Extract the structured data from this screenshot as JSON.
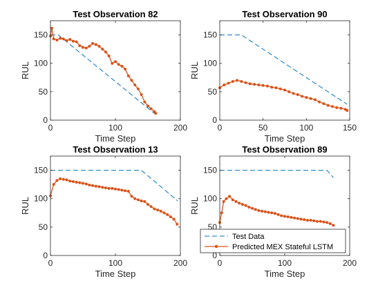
{
  "chart_data": [
    {
      "type": "line",
      "title": "Test Observation 82",
      "xlabel": "Time Step",
      "ylabel": "RUL",
      "xlim": [
        0,
        200
      ],
      "ylim": [
        0,
        175
      ],
      "xticks": [
        0,
        100,
        200
      ],
      "yticks": [
        0,
        50,
        100,
        150
      ],
      "series": [
        {
          "name": "Test Data",
          "style": "dashed",
          "color": "#0072BD",
          "x": [
            0,
            12,
            162
          ],
          "y": [
            150,
            150,
            10
          ]
        },
        {
          "name": "Predicted MEX Stateful LSTM",
          "style": "line-marker",
          "color": "#D95319",
          "x": [
            0,
            2,
            5,
            10,
            15,
            20,
            25,
            30,
            35,
            40,
            45,
            50,
            55,
            60,
            65,
            70,
            75,
            80,
            85,
            90,
            95,
            100,
            105,
            110,
            115,
            120,
            125,
            130,
            135,
            140,
            145,
            150,
            155,
            160,
            162
          ],
          "y": [
            148,
            162,
            143,
            141,
            144,
            143,
            140,
            142,
            139,
            138,
            131,
            128,
            127,
            130,
            135,
            133,
            130,
            125,
            120,
            113,
            100,
            103,
            98,
            95,
            90,
            78,
            70,
            62,
            55,
            45,
            32,
            25,
            20,
            15,
            12
          ]
        }
      ]
    },
    {
      "type": "line",
      "title": "Test Observation 90",
      "xlabel": "Time Step",
      "ylabel": "RUL",
      "xlim": [
        0,
        150
      ],
      "ylim": [
        0,
        175
      ],
      "xticks": [
        0,
        50,
        100,
        150
      ],
      "yticks": [
        0,
        50,
        100,
        150
      ],
      "series": [
        {
          "name": "Test Data",
          "style": "dashed",
          "color": "#0072BD",
          "x": [
            0,
            25,
            147
          ],
          "y": [
            150,
            150,
            28
          ]
        },
        {
          "name": "Predicted MEX Stateful LSTM",
          "style": "line-marker",
          "color": "#D95319",
          "x": [
            0,
            5,
            10,
            15,
            20,
            25,
            30,
            35,
            40,
            45,
            50,
            55,
            60,
            65,
            70,
            75,
            80,
            85,
            90,
            95,
            100,
            105,
            110,
            115,
            120,
            125,
            130,
            135,
            140,
            145,
            147
          ],
          "y": [
            57,
            62,
            65,
            68,
            70,
            68,
            66,
            64,
            63,
            62,
            61,
            60,
            58,
            57,
            55,
            53,
            50,
            47,
            45,
            42,
            40,
            38,
            36,
            32,
            29,
            26,
            24,
            22,
            21,
            19,
            17
          ]
        }
      ]
    },
    {
      "type": "line",
      "title": "Test Observation 13",
      "xlabel": "Time Step",
      "ylabel": "RUL",
      "xlim": [
        0,
        200
      ],
      "ylim": [
        0,
        175
      ],
      "xticks": [
        0,
        100,
        200
      ],
      "yticks": [
        0,
        50,
        100,
        150
      ],
      "series": [
        {
          "name": "Test Data",
          "style": "dashed",
          "color": "#0072BD",
          "x": [
            0,
            140,
            196
          ],
          "y": [
            150,
            150,
            96
          ]
        },
        {
          "name": "Predicted MEX Stateful LSTM",
          "style": "line-marker",
          "color": "#D95319",
          "x": [
            0,
            5,
            10,
            15,
            20,
            25,
            30,
            35,
            40,
            45,
            50,
            55,
            60,
            65,
            70,
            75,
            80,
            85,
            90,
            95,
            100,
            105,
            110,
            115,
            120,
            125,
            130,
            135,
            140,
            145,
            150,
            155,
            160,
            165,
            170,
            175,
            180,
            185,
            190,
            195
          ],
          "y": [
            105,
            125,
            132,
            135,
            134,
            133,
            131,
            130,
            129,
            128,
            127,
            126,
            124,
            123,
            122,
            121,
            120,
            119,
            118,
            118,
            117,
            116,
            115,
            114,
            113,
            104,
            100,
            98,
            96,
            95,
            90,
            86,
            82,
            80,
            78,
            75,
            72,
            68,
            64,
            55
          ]
        }
      ]
    },
    {
      "type": "line",
      "title": "Test Observation 89",
      "xlabel": "Time Step",
      "ylabel": "RUL",
      "xlim": [
        0,
        200
      ],
      "ylim": [
        0,
        175
      ],
      "xticks": [
        0,
        100,
        200
      ],
      "yticks": [
        0,
        50,
        100,
        150
      ],
      "series": [
        {
          "name": "Test Data",
          "style": "dashed",
          "color": "#0072BD",
          "x": [
            0,
            165,
            175
          ],
          "y": [
            150,
            150,
            137
          ]
        },
        {
          "name": "Predicted MEX Stateful LSTM",
          "style": "line-marker",
          "color": "#D95319",
          "x": [
            0,
            3,
            6,
            10,
            15,
            20,
            25,
            30,
            35,
            40,
            45,
            50,
            55,
            60,
            65,
            70,
            75,
            80,
            85,
            90,
            95,
            100,
            105,
            110,
            115,
            120,
            125,
            130,
            135,
            140,
            145,
            150,
            155,
            160,
            165,
            170,
            175
          ],
          "y": [
            58,
            75,
            95,
            100,
            104,
            98,
            95,
            92,
            90,
            88,
            85,
            83,
            81,
            79,
            78,
            77,
            76,
            75,
            74,
            72,
            70,
            69,
            68,
            67,
            66,
            65,
            64,
            63,
            62,
            62,
            61,
            60,
            60,
            59,
            58,
            56,
            53
          ]
        }
      ],
      "legend": {
        "position": "bottom-right",
        "entries": [
          "Test Data",
          "Predicted MEX Stateful LSTM"
        ]
      }
    }
  ]
}
